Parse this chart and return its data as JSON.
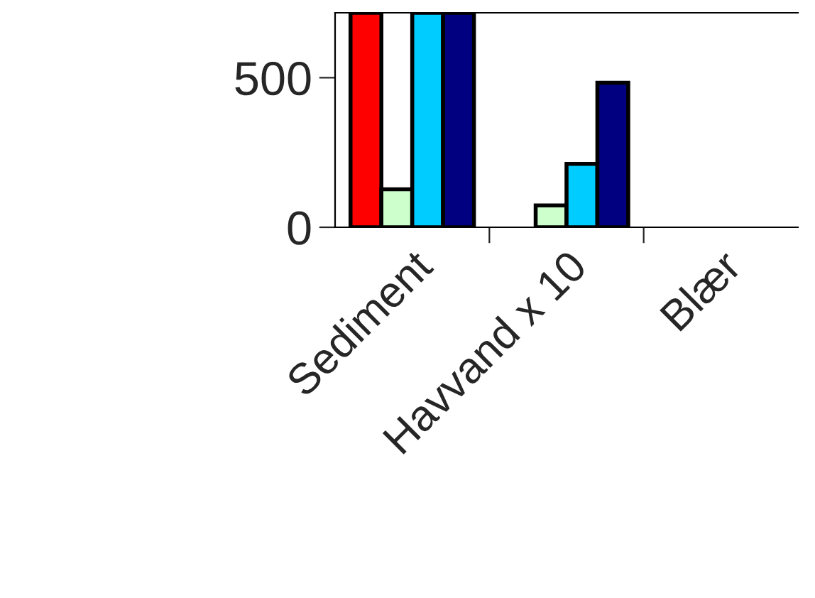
{
  "chart_data": {
    "type": "bar",
    "categories": [
      "Sediment",
      "Havvand x 10",
      "Blær"
    ],
    "series": [
      {
        "color": "#ff0000",
        "values": [
          717,
          null,
          null
        ]
      },
      {
        "color": "#ccffcc",
        "values": [
          127,
          73,
          null
        ]
      },
      {
        "color": "#00ccff",
        "values": [
          717,
          212,
          null
        ]
      },
      {
        "color": "#000080",
        "values": [
          717,
          483,
          null
        ]
      }
    ],
    "ylim": [
      0,
      717
    ],
    "yticks": [
      0,
      500
    ],
    "grid": false
  }
}
